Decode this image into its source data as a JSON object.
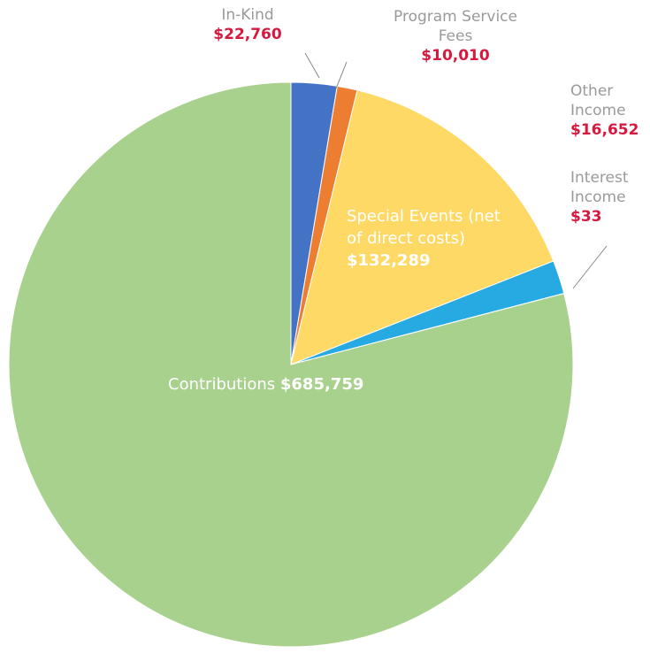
{
  "chart_data": {
    "type": "pie",
    "categories": [
      "In-Kind",
      "Program Service Fees",
      "Special Events (net of direct costs)",
      "Other Income",
      "Interest Income",
      "Contributions"
    ],
    "values": [
      22760,
      10010,
      132289,
      16652,
      33,
      685759
    ],
    "value_labels": [
      "$22,760",
      "$10,010",
      "$132,289",
      "$16,652",
      "$33",
      "$685,759"
    ],
    "colors": [
      "#4472c4",
      "#ed7d31",
      "#ffd966",
      "#27a9e1",
      "#5b9bd5",
      "#a9d18e"
    ]
  }
}
